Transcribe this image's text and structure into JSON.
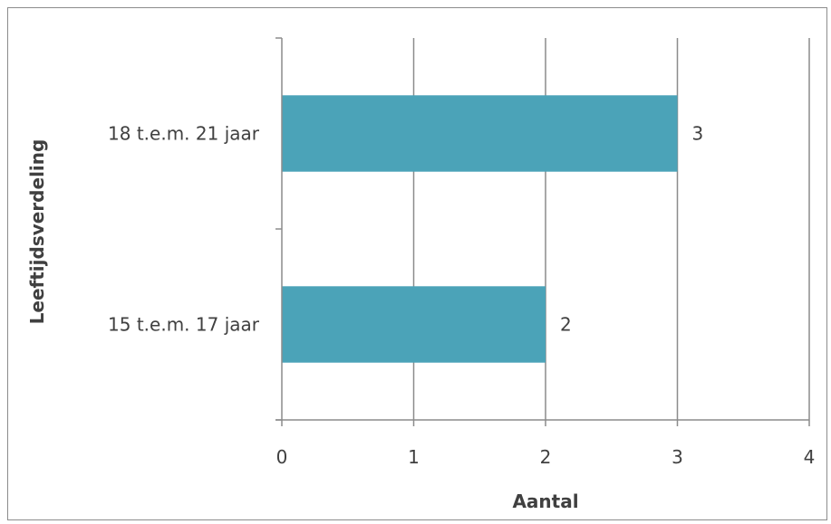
{
  "chart_data": {
    "type": "bar",
    "orientation": "horizontal",
    "categories": [
      "15 t.e.m. 17 jaar",
      "18 t.e.m. 21 jaar"
    ],
    "values": [
      2,
      3
    ],
    "data_labels": [
      "2",
      "3"
    ],
    "xlabel": "Aantal",
    "ylabel": "Leeftijdsverdeling",
    "xlim": [
      0,
      4
    ],
    "x_ticks": [
      0,
      1,
      2,
      3,
      4
    ],
    "x_tick_labels": [
      "0",
      "1",
      "2",
      "3",
      "4"
    ],
    "grid": true,
    "bar_color": "#4BA3B8",
    "grid_color": "#8c8c8c"
  }
}
